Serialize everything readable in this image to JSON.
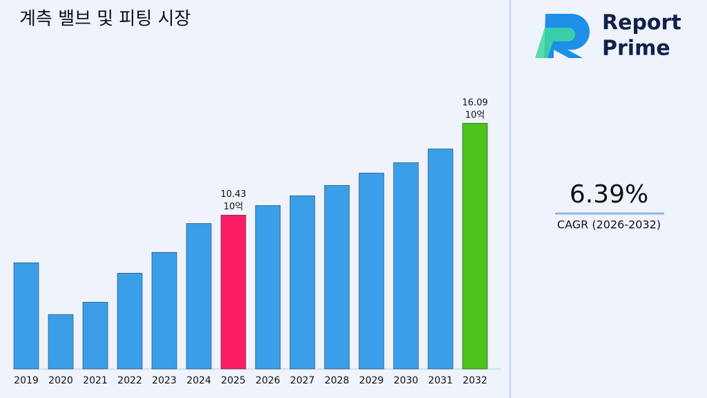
{
  "chart_data": {
    "type": "bar",
    "title": "계측 밸브 및 피팅 시장",
    "categories": [
      "2019",
      "2020",
      "2021",
      "2022",
      "2023",
      "2024",
      "2025",
      "2026",
      "2027",
      "2028",
      "2029",
      "2030",
      "2031",
      "2032"
    ],
    "values": [
      7.49,
      4.3,
      5.06,
      6.85,
      8.13,
      9.91,
      10.43,
      11.02,
      11.62,
      12.26,
      13.02,
      13.66,
      14.51,
      16.09
    ],
    "value_labels": [
      null,
      null,
      null,
      null,
      null,
      null,
      "10.43 10억",
      null,
      null,
      null,
      null,
      null,
      null,
      "16.09 10억"
    ],
    "colors": [
      "#3a9fe8",
      "#3a9fe8",
      "#3a9fe8",
      "#3a9fe8",
      "#3a9fe8",
      "#3a9fe8",
      "#fc1c64",
      "#3a9fe8",
      "#3a9fe8",
      "#3a9fe8",
      "#3a9fe8",
      "#3a9fe8",
      "#3a9fe8",
      "#4cc21a"
    ],
    "ylim": [
      0.94,
      17.0
    ]
  },
  "side_panel": {
    "cagr_value": "6.39%",
    "cagr_label": "CAGR (2026-2032)",
    "logo_line1": "Report",
    "logo_line2": "Prime"
  }
}
